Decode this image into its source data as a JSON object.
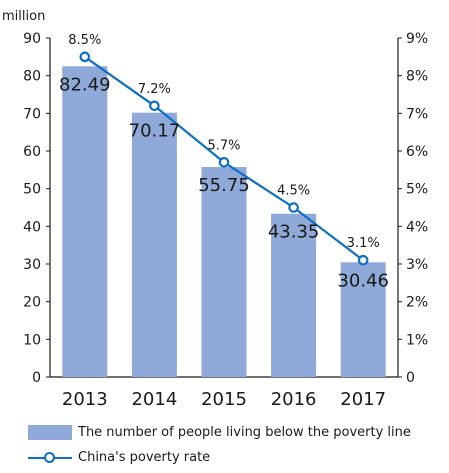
{
  "colors": {
    "bar": "#8fa9d8",
    "line": "#0d6fc4",
    "axis": "#1a1a1a"
  },
  "chart_data": {
    "type": "bar",
    "categories": [
      "2013",
      "2014",
      "2015",
      "2016",
      "2017"
    ],
    "ylabel_left": "million",
    "ylim_left": [
      0,
      90
    ],
    "yticks_left": [
      "0",
      "10",
      "20",
      "30",
      "40",
      "50",
      "60",
      "70",
      "80",
      "90"
    ],
    "ylim_right": [
      0,
      9
    ],
    "yticks_right": [
      "0",
      "1%",
      "2%",
      "3%",
      "4%",
      "5%",
      "6%",
      "7%",
      "8%",
      "9%"
    ],
    "grid": false,
    "legend_position": "bottom",
    "series": [
      {
        "name": "The number of people living below the poverty line",
        "type": "bar",
        "axis": "left",
        "values": [
          82.49,
          70.17,
          55.75,
          43.35,
          30.46
        ],
        "labels": [
          "82.49",
          "70.17",
          "55.75",
          "43.35",
          "30.46"
        ]
      },
      {
        "name": "China's poverty rate",
        "type": "line",
        "axis": "right",
        "values": [
          8.5,
          7.2,
          5.7,
          4.5,
          3.1
        ],
        "labels": [
          "8.5%",
          "7.2%",
          "5.7%",
          "4.5%",
          "3.1%"
        ]
      }
    ]
  }
}
